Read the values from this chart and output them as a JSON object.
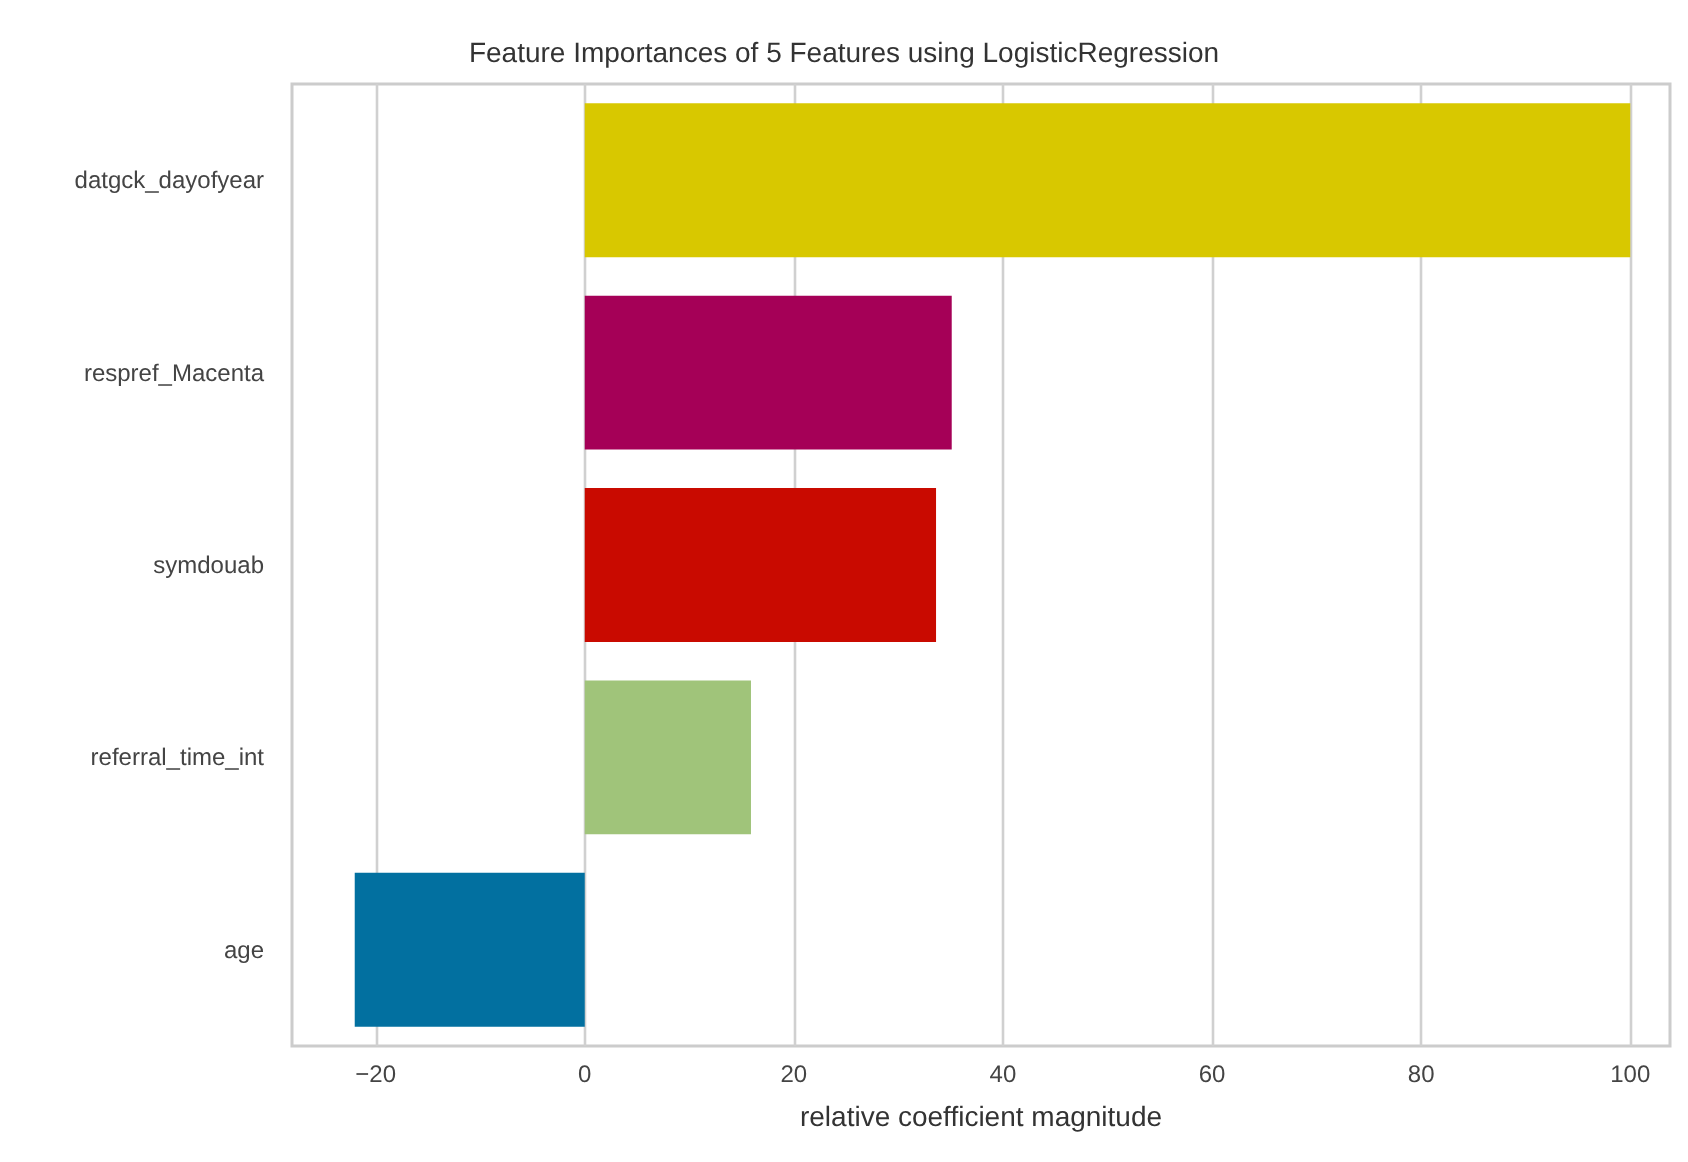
{
  "chart_data": {
    "type": "bar",
    "orientation": "horizontal",
    "title": "Feature Importances of 5 Features using LogisticRegression",
    "xlabel": "relative coefficient magnitude",
    "categories": [
      "datgck_dayofyear",
      "respref_Macenta",
      "symdouab",
      "referral_time_int",
      "age"
    ],
    "values": [
      100,
      35.1,
      33.6,
      15.9,
      -22.0
    ],
    "colors": [
      "#d8c800",
      "#a50057",
      "#c90a00",
      "#a0c47a",
      "#0270a0"
    ],
    "xlim": [
      -28,
      103.8
    ],
    "xticks": [
      {
        "value": -20,
        "label": "−20"
      },
      0,
      20,
      40,
      60,
      80,
      100
    ],
    "grid": "x"
  }
}
